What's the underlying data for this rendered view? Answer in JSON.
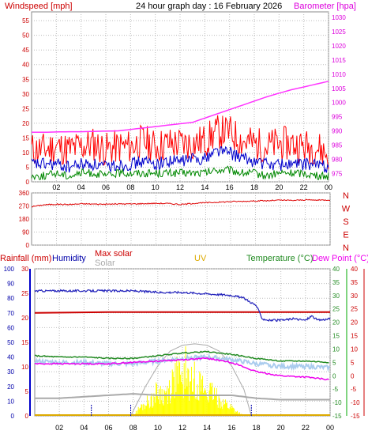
{
  "colors": {
    "wind": "#ff0000",
    "gust_avg": "#0000cc",
    "wind_min": "#008800",
    "barometer": "#ff33ff",
    "direction": "#dd0000",
    "rain": "#0000cc",
    "humidity": "#2222bb",
    "temperature": "#228b22",
    "dew_point": "#ee00ee",
    "solar": "#aaaaaa",
    "uv": "#ddaa00",
    "solar_fill": "#ffff00",
    "grid": "#bbbbbb",
    "plot_bg": "#ffffff",
    "axis_text": "#000000"
  },
  "chart_data": [
    {
      "type": "line",
      "title": "24 hour graph day : 16 February 2026",
      "left_axis_label": "Windspeed [mph]",
      "right_axis_label": "Barometer [hpa]",
      "x_ticks": [
        "02",
        "04",
        "06",
        "08",
        "10",
        "12",
        "14",
        "16",
        "18",
        "20",
        "22",
        "00"
      ],
      "y_left_ticks": [
        "0",
        "5",
        "10",
        "15",
        "20",
        "25",
        "30",
        "35",
        "40",
        "45",
        "50",
        "55"
      ],
      "y_left_range": [
        0,
        58
      ],
      "y_right_ticks": [
        "975",
        "980",
        "985",
        "990",
        "995",
        "1000",
        "1005",
        "1010",
        "1015",
        "1020",
        "1025",
        "1030"
      ],
      "y_right_range": [
        972,
        1032
      ],
      "x_range_hours": [
        0,
        24
      ],
      "series": [
        {
          "name": "Windspeed",
          "key": "wind",
          "x": [
            0,
            1,
            2,
            3,
            4,
            5,
            6,
            7,
            8,
            9,
            10,
            11,
            12,
            13,
            14,
            15,
            16,
            17,
            18,
            19,
            20,
            21,
            22,
            23,
            24
          ],
          "values": [
            11,
            11,
            12,
            11,
            12,
            13,
            11,
            12,
            12,
            14,
            12,
            13,
            13,
            13,
            14,
            17,
            17,
            14,
            13,
            12,
            13,
            13,
            12,
            12,
            9
          ]
        },
        {
          "name": "Windspeed average",
          "key": "gust_avg",
          "x": [
            0,
            1,
            2,
            3,
            4,
            5,
            6,
            7,
            8,
            9,
            10,
            11,
            12,
            13,
            14,
            15,
            16,
            17,
            18,
            19,
            20,
            21,
            22,
            23,
            24
          ],
          "values": [
            6,
            6,
            6,
            5,
            6,
            6,
            5,
            6,
            6,
            7,
            6,
            7,
            7,
            8,
            8,
            11,
            10,
            8,
            7,
            6,
            6,
            6,
            6,
            6,
            5
          ]
        },
        {
          "name": "Windspeed minimum",
          "key": "wind_min",
          "x": [
            0,
            1,
            2,
            3,
            4,
            5,
            6,
            7,
            8,
            9,
            10,
            11,
            12,
            13,
            14,
            15,
            16,
            17,
            18,
            19,
            20,
            21,
            22,
            23,
            24
          ],
          "values": [
            2,
            2,
            3,
            2,
            3,
            3,
            2,
            3,
            3,
            3,
            3,
            3,
            3,
            3,
            3,
            4,
            4,
            3,
            3,
            2,
            3,
            3,
            3,
            2,
            2
          ]
        },
        {
          "name": "Barometer",
          "key": "barometer",
          "axis": "right",
          "x": [
            0,
            1,
            2,
            3,
            4,
            5,
            6,
            7,
            8,
            9,
            10,
            11,
            12,
            13,
            14,
            15,
            16,
            17,
            18,
            19,
            20,
            21,
            22,
            23,
            24
          ],
          "values": [
            989.5,
            989.5,
            989.6,
            989.7,
            989.7,
            989.8,
            989.9,
            990.0,
            990.5,
            991.0,
            991.5,
            992.0,
            992.5,
            993.0,
            994.5,
            996.0,
            997.5,
            999.0,
            1000.5,
            1002.0,
            1003.3,
            1004.5,
            1005.5,
            1006.5,
            1007.5
          ]
        }
      ]
    },
    {
      "type": "line",
      "title": "",
      "y_left_ticks": [
        "0",
        "90",
        "180",
        "270",
        "360"
      ],
      "y_range": [
        0,
        360
      ],
      "y_right_ticks": [
        "N",
        "W",
        "S",
        "E",
        "N"
      ],
      "x_range_hours": [
        0,
        24
      ],
      "series": [
        {
          "name": "Wind direction",
          "key": "direction",
          "x": [
            0,
            1,
            2,
            3,
            4,
            5,
            6,
            7,
            8,
            9,
            10,
            11,
            12,
            13,
            14,
            15,
            16,
            17,
            18,
            19,
            20,
            21,
            22,
            23,
            24
          ],
          "values": [
            265,
            278,
            282,
            280,
            285,
            283,
            282,
            284,
            284,
            286,
            288,
            287,
            280,
            288,
            292,
            296,
            300,
            302,
            305,
            306,
            310,
            308,
            312,
            310,
            312
          ]
        }
      ]
    },
    {
      "type": "line",
      "title": "",
      "labels": {
        "rainfall": "Rainfall (mm)",
        "humidity": "Humidity",
        "max_solar": "Max solar",
        "solar": "Solar",
        "uv": "UV",
        "temperature": "Temperature (°C)",
        "dew_point": "Dew Point (°C)"
      },
      "x_ticks": [
        "02",
        "04",
        "06",
        "08",
        "10",
        "12",
        "14",
        "16",
        "18",
        "20",
        "22",
        "00"
      ],
      "humidity_ticks": [
        "0",
        "10",
        "20",
        "30",
        "40",
        "50",
        "60",
        "70",
        "80",
        "90",
        "100"
      ],
      "humidity_range": [
        0,
        100
      ],
      "rain_ticks": [
        "0",
        "5",
        "10",
        "15",
        "20",
        "25",
        "30"
      ],
      "rain_range": [
        0,
        30
      ],
      "temp_ticks": [
        "-15",
        "-10",
        "-5",
        "0",
        "5",
        "10",
        "15",
        "20",
        "25",
        "30",
        "35",
        "40"
      ],
      "temp_range": [
        -15,
        40
      ],
      "x_range_hours": [
        0,
        24
      ],
      "series": [
        {
          "name": "Humidity",
          "key": "humidity",
          "x": [
            0,
            2,
            4,
            6,
            8,
            10,
            12,
            14,
            16,
            17,
            18,
            18.5,
            19,
            20,
            21,
            22,
            22.5,
            23,
            24
          ],
          "values": [
            85,
            85,
            85,
            85,
            85,
            84,
            84,
            83,
            82,
            80,
            75,
            66,
            65,
            65,
            66,
            65,
            68,
            65,
            66
          ]
        },
        {
          "name": "Rainfall",
          "key": "rain",
          "x": [
            0,
            24
          ],
          "values": [
            21,
            21
          ]
        },
        {
          "name": "Temperature",
          "key": "temperature",
          "x": [
            0,
            2,
            4,
            6,
            8,
            10,
            12,
            14,
            16,
            18,
            20,
            22,
            24
          ],
          "values": [
            7.5,
            7,
            7,
            6.5,
            6.5,
            7.5,
            8.5,
            9,
            8,
            6.5,
            5.5,
            5.5,
            5
          ]
        },
        {
          "name": "Dew Point",
          "key": "dew_point",
          "x": [
            0,
            2,
            4,
            6,
            8,
            10,
            12,
            14,
            16,
            18,
            20,
            22,
            24
          ],
          "values": [
            4.5,
            4.5,
            4.5,
            4.5,
            5,
            5.5,
            6,
            6.5,
            5,
            1.5,
            0,
            -0.5,
            -1.5
          ]
        },
        {
          "name": "Solar",
          "key": "solar",
          "x": [
            0,
            2,
            4,
            6,
            8,
            10,
            12,
            14,
            16,
            18,
            20,
            22,
            24
          ],
          "values": [
            12,
            12,
            13,
            14,
            15,
            14,
            14,
            14,
            14,
            12,
            11,
            11,
            11
          ]
        },
        {
          "name": "Max solar",
          "key": "max_solar",
          "x": [
            7.8,
            9,
            10,
            11,
            12,
            13,
            14,
            15,
            16,
            17,
            17.6
          ],
          "values": [
            0,
            20,
            34,
            44,
            48,
            49,
            48,
            44,
            34,
            18,
            0
          ]
        },
        {
          "name": "Solar radiation",
          "key": "solar_fill",
          "x": [
            8,
            8.5,
            9,
            9.5,
            10,
            10.5,
            11,
            11.5,
            12,
            12.3,
            12.6,
            13,
            13.5,
            14,
            14.5,
            15,
            15.5,
            16,
            16.5,
            17
          ],
          "values": [
            0,
            6,
            10,
            14,
            20,
            17,
            24,
            35,
            27,
            40,
            24,
            32,
            26,
            20,
            18,
            14,
            10,
            7,
            3,
            0
          ]
        }
      ]
    }
  ]
}
